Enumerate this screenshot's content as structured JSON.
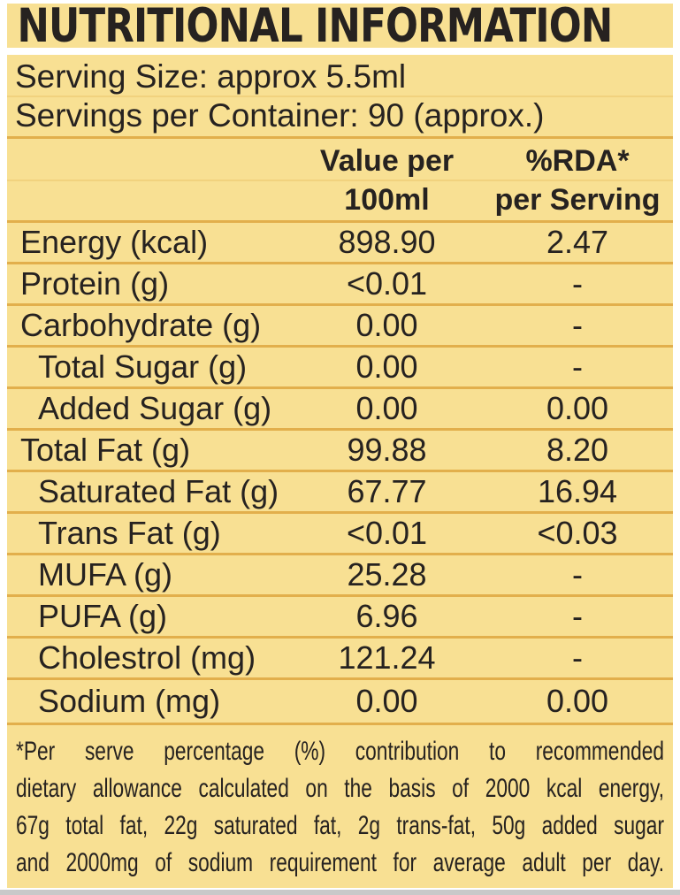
{
  "title": "NUTRITIONAL INFORMATION",
  "serving": {
    "size": "Serving Size: approx 5.5ml",
    "per_container": "Servings per Container: 90 (approx.)"
  },
  "table": {
    "columns": {
      "value_line1": "Value per",
      "value_line2": "100ml",
      "rda_line1": "%RDA*",
      "rda_line2": "per Serving"
    },
    "rows": [
      {
        "label": "Energy (kcal)",
        "value": "898.90",
        "rda": "2.47",
        "indent": false
      },
      {
        "label": "Protein (g)",
        "value": "<0.01",
        "rda": "-",
        "indent": false
      },
      {
        "label": "Carbohydrate (g)",
        "value": "0.00",
        "rda": "-",
        "indent": false
      },
      {
        "label": "Total Sugar (g)",
        "value": "0.00",
        "rda": "-",
        "indent": true
      },
      {
        "label": "Added Sugar (g)",
        "value": "0.00",
        "rda": "0.00",
        "indent": true
      },
      {
        "label": "Total Fat (g)",
        "value": "99.88",
        "rda": "8.20",
        "indent": false
      },
      {
        "label": "Saturated Fat (g)",
        "value": "67.77",
        "rda": "16.94",
        "indent": true
      },
      {
        "label": "Trans Fat (g)",
        "value": "<0.01",
        "rda": "<0.03",
        "indent": true
      },
      {
        "label": "MUFA (g)",
        "value": "25.28",
        "rda": "-",
        "indent": true
      },
      {
        "label": "PUFA (g)",
        "value": "6.96",
        "rda": "-",
        "indent": true
      },
      {
        "label": "Cholestrol (mg)",
        "value": "121.24",
        "rda": "-",
        "indent": true
      },
      {
        "label": "Sodium (mg)",
        "value": "0.00",
        "rda": "0.00",
        "indent": true
      }
    ]
  },
  "footnote": {
    "lines": [
      "*Per serve percentage (%) contribution to recommended",
      "dietary allowance calculated on the basis of 2000 kcal energy,",
      "67g total fat, 22g saturated fat, 2g trans-fat, 50g added sugar",
      "and 2000mg of sodium requirement for average adult per day."
    ]
  },
  "colors": {
    "label_background": "#f8e093",
    "rule_line": "#e2af4c",
    "text": "#262220",
    "page_background": "#ffffff"
  }
}
